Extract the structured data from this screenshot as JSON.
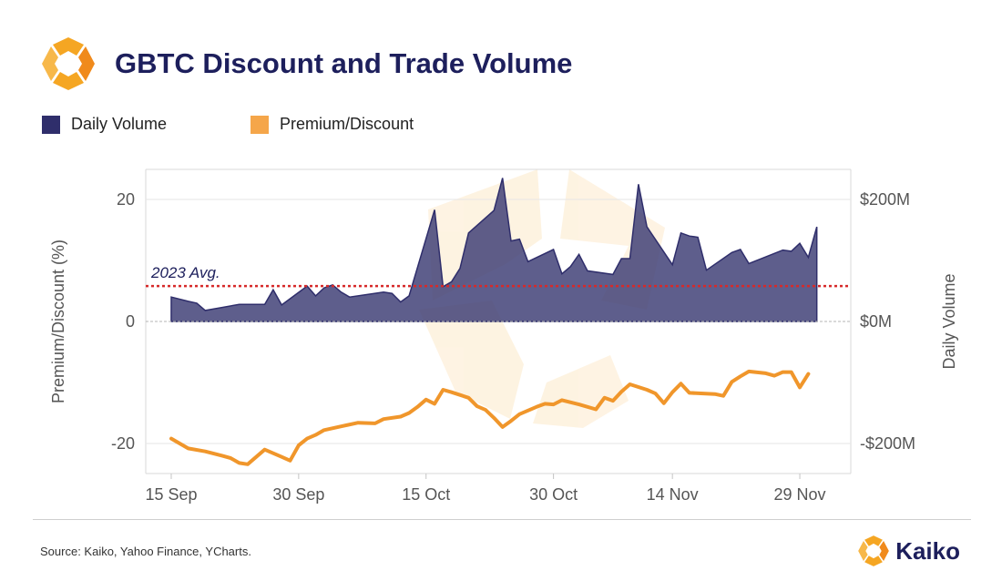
{
  "header": {
    "title": "GBTC Discount and Trade Volume"
  },
  "legend": {
    "volume_label": "Daily Volume",
    "premium_label": "Premium/Discount"
  },
  "footer": {
    "source": "Source: Kaiko, Yahoo Finance, YCharts.",
    "brand": "Kaiko"
  },
  "colors": {
    "volume_fill": "#2f2e6b",
    "premium_line": "#f0962b",
    "avg_line": "#d62a2a",
    "title": "#1d1f5c",
    "logo": "#f5a623"
  },
  "chart_data": {
    "type": "area",
    "title": "GBTC Discount and Trade Volume",
    "x_ticks": [
      "15 Sep",
      "30 Sep",
      "15 Oct",
      "30 Oct",
      "14 Nov",
      "29 Nov"
    ],
    "x_tick_days": [
      15,
      30,
      45,
      60,
      74,
      89
    ],
    "x_note": "dates (2023), numbered as day since 31 Aug",
    "ylabel_left": "Premium/Discount (%)",
    "ylabel_right": "Daily Volume",
    "yticks_left": [
      "20",
      "0",
      "-20"
    ],
    "yticks_left_values": [
      20,
      0,
      -20
    ],
    "yticks_right": [
      "$200M",
      "$0M",
      "-$200M"
    ],
    "ylim_left": [
      -25,
      25
    ],
    "ylim_right": [
      -250,
      250
    ],
    "avg_label": "2023 Avg.",
    "avg_value_musd": 58,
    "series": [
      {
        "name": "Daily Volume",
        "axis": "right",
        "units": "USD millions",
        "points": [
          [
            15,
            40
          ],
          [
            17,
            33
          ],
          [
            18,
            30
          ],
          [
            19,
            18
          ],
          [
            21,
            23
          ],
          [
            23,
            28
          ],
          [
            25,
            28
          ],
          [
            26,
            28
          ],
          [
            27,
            52
          ],
          [
            28,
            27
          ],
          [
            31,
            58
          ],
          [
            32,
            42
          ],
          [
            33,
            55
          ],
          [
            34,
            60
          ],
          [
            35,
            48
          ],
          [
            36,
            40
          ],
          [
            40,
            48
          ],
          [
            41,
            46
          ],
          [
            42,
            32
          ],
          [
            43,
            42
          ],
          [
            46,
            183
          ],
          [
            47,
            57
          ],
          [
            48,
            65
          ],
          [
            49,
            87
          ],
          [
            50,
            145
          ],
          [
            53,
            182
          ],
          [
            54,
            235
          ],
          [
            55,
            132
          ],
          [
            56,
            135
          ],
          [
            57,
            98
          ],
          [
            60,
            118
          ],
          [
            61,
            78
          ],
          [
            62,
            90
          ],
          [
            63,
            110
          ],
          [
            64,
            83
          ],
          [
            67,
            77
          ],
          [
            68,
            103
          ],
          [
            69,
            103
          ],
          [
            70,
            225
          ],
          [
            71,
            155
          ],
          [
            74,
            93
          ],
          [
            75,
            145
          ],
          [
            76,
            140
          ],
          [
            77,
            138
          ],
          [
            78,
            84
          ],
          [
            81,
            113
          ],
          [
            82,
            118
          ],
          [
            83,
            95
          ],
          [
            87,
            117
          ],
          [
            88,
            115
          ],
          [
            89,
            128
          ],
          [
            90,
            105
          ],
          [
            91,
            155
          ]
        ]
      },
      {
        "name": "Premium/Discount",
        "axis": "left",
        "units": "%",
        "points": [
          [
            15,
            -19.2
          ],
          [
            17,
            -20.8
          ],
          [
            19,
            -21.3
          ],
          [
            21,
            -22.0
          ],
          [
            22,
            -22.4
          ],
          [
            23,
            -23.2
          ],
          [
            24,
            -23.4
          ],
          [
            26,
            -21.0
          ],
          [
            28,
            -22.2
          ],
          [
            29,
            -22.8
          ],
          [
            30,
            -20.3
          ],
          [
            31,
            -19.2
          ],
          [
            32,
            -18.6
          ],
          [
            33,
            -17.8
          ],
          [
            35,
            -17.2
          ],
          [
            37,
            -16.6
          ],
          [
            39,
            -16.7
          ],
          [
            40,
            -16.0
          ],
          [
            42,
            -15.6
          ],
          [
            43,
            -15.0
          ],
          [
            44,
            -14.0
          ],
          [
            45,
            -12.8
          ],
          [
            46,
            -13.5
          ],
          [
            47,
            -11.2
          ],
          [
            48,
            -11.6
          ],
          [
            50,
            -12.5
          ],
          [
            51,
            -13.9
          ],
          [
            52,
            -14.5
          ],
          [
            53,
            -15.8
          ],
          [
            54,
            -17.3
          ],
          [
            55,
            -16.3
          ],
          [
            56,
            -15.2
          ],
          [
            58,
            -14.0
          ],
          [
            59,
            -13.5
          ],
          [
            60,
            -13.6
          ],
          [
            61,
            -12.9
          ],
          [
            63,
            -13.6
          ],
          [
            65,
            -14.4
          ],
          [
            66,
            -12.5
          ],
          [
            67,
            -13.0
          ],
          [
            68,
            -11.5
          ],
          [
            69,
            -10.3
          ],
          [
            71,
            -11.2
          ],
          [
            72,
            -11.8
          ],
          [
            73,
            -13.4
          ],
          [
            74,
            -11.6
          ],
          [
            75,
            -10.2
          ],
          [
            76,
            -11.7
          ],
          [
            79,
            -11.9
          ],
          [
            80,
            -12.2
          ],
          [
            81,
            -9.9
          ],
          [
            82,
            -9.0
          ],
          [
            83,
            -8.2
          ],
          [
            85,
            -8.5
          ],
          [
            86,
            -8.9
          ],
          [
            87,
            -8.3
          ],
          [
            88,
            -8.3
          ],
          [
            89,
            -10.8
          ],
          [
            90,
            -8.6
          ]
        ]
      }
    ],
    "grid": "horizontal",
    "legend_position": "top-left"
  }
}
